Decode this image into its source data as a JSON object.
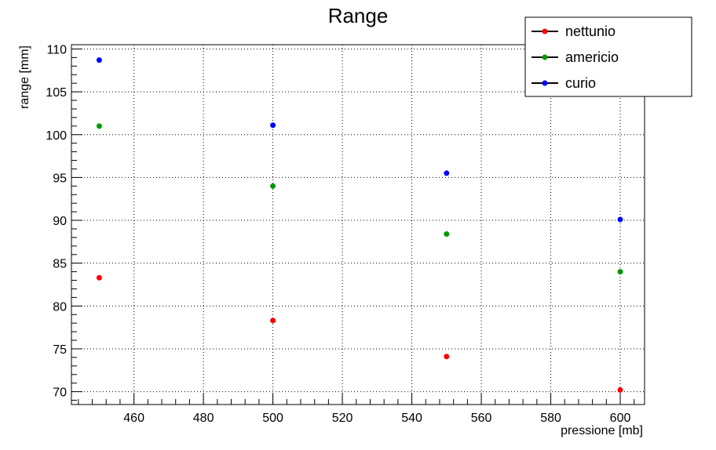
{
  "chart_data": {
    "type": "scatter",
    "title": "Range",
    "xlabel": "pressione [mb]",
    "ylabel": "range [mm]",
    "xlim": [
      442,
      607
    ],
    "ylim": [
      68.5,
      110.5
    ],
    "xticks": [
      460,
      480,
      500,
      520,
      540,
      560,
      580,
      600
    ],
    "yticks": [
      70,
      75,
      80,
      85,
      90,
      95,
      100,
      105,
      110
    ],
    "grid": true,
    "legend_position": "top-right",
    "series": [
      {
        "name": "nettunio",
        "color": "#ff0000",
        "x": [
          450,
          500,
          550,
          600
        ],
        "y": [
          83.3,
          78.3,
          74.1,
          70.2
        ]
      },
      {
        "name": "americio",
        "color": "#009900",
        "x": [
          450,
          500,
          550,
          600
        ],
        "y": [
          101.0,
          94.0,
          88.4,
          84.0
        ]
      },
      {
        "name": "curio",
        "color": "#0000ff",
        "x": [
          450,
          500,
          550,
          600
        ],
        "y": [
          108.7,
          101.1,
          95.5,
          90.1
        ]
      }
    ]
  }
}
